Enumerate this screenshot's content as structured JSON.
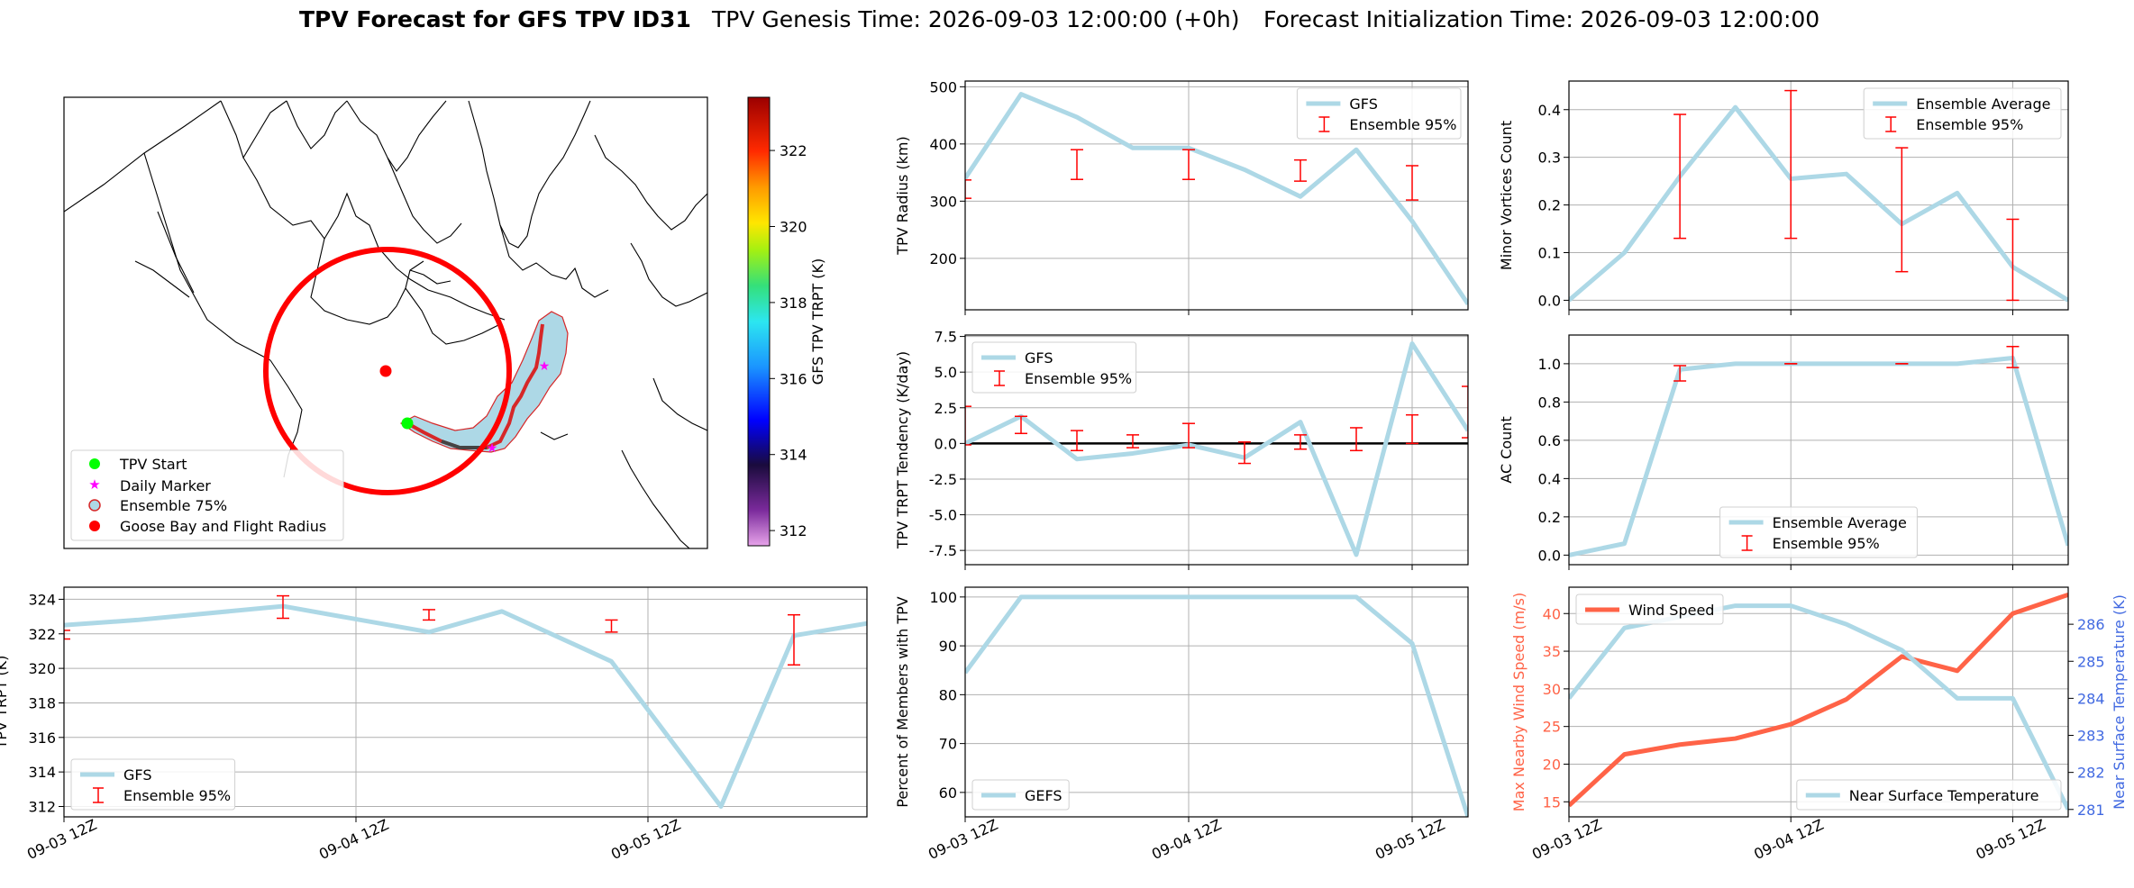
{
  "title": {
    "bold": "TPV Forecast for GFS TPV ID31",
    "genesis": "TPV Genesis Time: 2026-09-03 12:00:00 (+0h)",
    "init": "Forecast Initialization Time: 2026-09-03 12:00:00"
  },
  "colors": {
    "gfs_line": "#add8e6",
    "error_bar": "#ff0000",
    "wind": "#ff6347",
    "temp_axis": "#4169e1",
    "map_track": "#d62728",
    "tpv_start": "#00ff00",
    "daily_marker": "#ff00ff",
    "goose_bay": "#ff0000"
  },
  "time_ticks": [
    "09-03 12Z",
    "09-04 12Z",
    "09-05 12Z"
  ],
  "map": {
    "colorbar_label": "GFS TPV TRPT (K)",
    "colorbar_ticks": [
      "322",
      "320",
      "318",
      "316",
      "314",
      "312"
    ],
    "colorbar_range": [
      311.6,
      323.4
    ],
    "legend": [
      "TPV Start",
      "Daily Marker",
      "Ensemble 75%",
      "Goose Bay and Flight Radius"
    ]
  },
  "chart_data": [
    {
      "id": "tpv_trpt",
      "type": "line",
      "ylabel": "TPV TRPT (K)",
      "ylim": [
        311.4,
        324.7
      ],
      "yticks": [
        "324",
        "322",
        "320",
        "318",
        "316",
        "314",
        "312"
      ],
      "legend_position": "lower-left",
      "series": [
        {
          "name": "GFS",
          "x": [
            0,
            0.5,
            1.5,
            2.5,
            3.0,
            3.75,
            4.5,
            5.0,
            5.5
          ],
          "values": [
            322.5,
            322.8,
            323.6,
            322.1,
            323.3,
            320.4,
            312.0,
            321.9,
            322.6
          ]
        },
        {
          "name": "Ensemble 95%",
          "type": "errorbar",
          "x": [
            0,
            1.5,
            2.5,
            3.75,
            5.0
          ],
          "lower": [
            321.7,
            322.9,
            322.8,
            322.1,
            320.2
          ],
          "upper": [
            322.2,
            324.2,
            323.4,
            322.8,
            323.1
          ]
        }
      ]
    },
    {
      "id": "tpv_radius",
      "type": "line",
      "ylabel": "TPV Radius (km)",
      "ylim": [
        110,
        510
      ],
      "yticks": [
        "500",
        "400",
        "300",
        "200"
      ],
      "legend_position": "upper-right",
      "series": [
        {
          "name": "GFS",
          "x": [
            0,
            0.5,
            1.0,
            1.5,
            2.0,
            2.5,
            3.0,
            3.5,
            4.0,
            4.5
          ],
          "values": [
            340,
            487,
            447,
            393,
            393,
            355,
            308,
            390,
            265,
            120
          ]
        },
        {
          "name": "Ensemble 95%",
          "type": "errorbar",
          "x": [
            0,
            1.0,
            2.0,
            3.0,
            4.0
          ],
          "lower": [
            305,
            338,
            338,
            335,
            302
          ],
          "upper": [
            337,
            390,
            390,
            372,
            362
          ]
        }
      ]
    },
    {
      "id": "minor_vortices",
      "type": "line",
      "ylabel": "Minor Vortices Count",
      "ylim": [
        -0.02,
        0.46
      ],
      "yticks": [
        "0.4",
        "0.3",
        "0.2",
        "0.1",
        "0.0"
      ],
      "legend_position": "upper-right",
      "series": [
        {
          "name": "Ensemble Average",
          "x": [
            0,
            0.5,
            1.0,
            1.5,
            2.0,
            2.5,
            3.0,
            3.5,
            4.0,
            4.5
          ],
          "values": [
            0.0,
            0.1,
            0.26,
            0.405,
            0.255,
            0.265,
            0.16,
            0.225,
            0.07,
            0.0
          ]
        },
        {
          "name": "Ensemble 95%",
          "type": "errorbar",
          "x": [
            1.0,
            2.0,
            3.0,
            4.0
          ],
          "lower": [
            0.13,
            0.13,
            0.06,
            0.0
          ],
          "upper": [
            0.39,
            0.44,
            0.32,
            0.17
          ]
        }
      ]
    },
    {
      "id": "trpt_tendency",
      "type": "line",
      "ylabel": "TPV TRPT Tendency (K/day)",
      "ylim": [
        -8.5,
        7.6
      ],
      "yticks": [
        "7.5",
        "5.0",
        "2.5",
        "0.0",
        "-2.5",
        "-5.0",
        "-7.5"
      ],
      "zero_line": true,
      "legend_position": "upper-left",
      "series": [
        {
          "name": "GFS",
          "x": [
            0,
            0.5,
            1.0,
            1.5,
            2.0,
            2.5,
            3.0,
            3.5,
            4.0,
            4.5
          ],
          "values": [
            0.0,
            1.9,
            -1.1,
            -0.7,
            -0.1,
            -1.0,
            1.5,
            -7.8,
            7.0,
            0.9
          ]
        },
        {
          "name": "Ensemble 95%",
          "type": "errorbar",
          "x": [
            0,
            0.5,
            1.0,
            1.5,
            2.0,
            2.5,
            3.0,
            3.5,
            4.0,
            4.5
          ],
          "lower": [
            -0.1,
            0.7,
            -0.5,
            -0.3,
            -0.3,
            -1.4,
            -0.4,
            -0.5,
            0.0,
            0.4
          ],
          "upper": [
            2.6,
            1.9,
            0.9,
            0.6,
            1.4,
            0.1,
            0.6,
            1.1,
            2.0,
            4.0
          ]
        }
      ]
    },
    {
      "id": "ac_count",
      "type": "line",
      "ylabel": "AC Count",
      "ylim": [
        -0.05,
        1.15
      ],
      "yticks": [
        "1.0",
        "0.8",
        "0.6",
        "0.4",
        "0.2",
        "0.0"
      ],
      "legend_position": "lower-center",
      "series": [
        {
          "name": "Ensemble Average",
          "x": [
            0,
            0.5,
            1.0,
            1.5,
            2.0,
            2.5,
            3.0,
            3.5,
            4.0,
            4.5
          ],
          "values": [
            0.0,
            0.06,
            0.97,
            1.0,
            1.0,
            1.0,
            1.0,
            1.0,
            1.03,
            0.05
          ]
        },
        {
          "name": "Ensemble 95%",
          "type": "errorbar",
          "x": [
            1.0,
            2.0,
            3.0,
            4.0
          ],
          "lower": [
            0.91,
            1.0,
            1.0,
            0.98
          ],
          "upper": [
            0.99,
            1.0,
            1.0,
            1.09
          ]
        }
      ]
    },
    {
      "id": "percent_members",
      "type": "line",
      "ylabel": "Percent of Members with TPV",
      "ylim": [
        55,
        102
      ],
      "yticks": [
        "100",
        "90",
        "80",
        "70",
        "60"
      ],
      "legend_position": "lower-left",
      "series": [
        {
          "name": "GEFS",
          "x": [
            0,
            0.5,
            1.0,
            1.5,
            2.0,
            2.5,
            3.0,
            3.5,
            4.0,
            4.5
          ],
          "values": [
            84.5,
            100,
            100,
            100,
            100,
            100,
            100,
            100,
            90.5,
            55
          ]
        }
      ]
    },
    {
      "id": "wind_temp",
      "type": "line",
      "ylabel": "Max Nearby Wind Speed (m/s)",
      "ylim": [
        13,
        43.5
      ],
      "yticks": [
        "40",
        "35",
        "30",
        "25",
        "20",
        "15"
      ],
      "ylabel_right": "Near Surface Temperature (K)",
      "ylim_right": [
        280.8,
        287.0
      ],
      "yticks_right": [
        "286",
        "285",
        "284",
        "283",
        "282",
        "281"
      ],
      "series": [
        {
          "name": "Wind Speed",
          "axis": "left",
          "legend_position": "upper-left",
          "x": [
            0,
            0.5,
            1.0,
            1.5,
            2.0,
            2.5,
            3.0,
            3.5,
            4.0,
            4.5
          ],
          "values": [
            14.5,
            21.3,
            22.6,
            23.4,
            25.3,
            28.6,
            34.3,
            32.4,
            40.0,
            42.5
          ]
        },
        {
          "name": "Near Surface Temperature",
          "axis": "right",
          "legend_position": "lower-right",
          "x": [
            0,
            0.5,
            1.0,
            1.5,
            2.0,
            2.5,
            3.0,
            3.5,
            4.0,
            4.5
          ],
          "values": [
            284.0,
            285.9,
            286.2,
            286.5,
            286.5,
            286.0,
            285.3,
            284.0,
            284.0,
            281.0
          ]
        }
      ]
    }
  ]
}
